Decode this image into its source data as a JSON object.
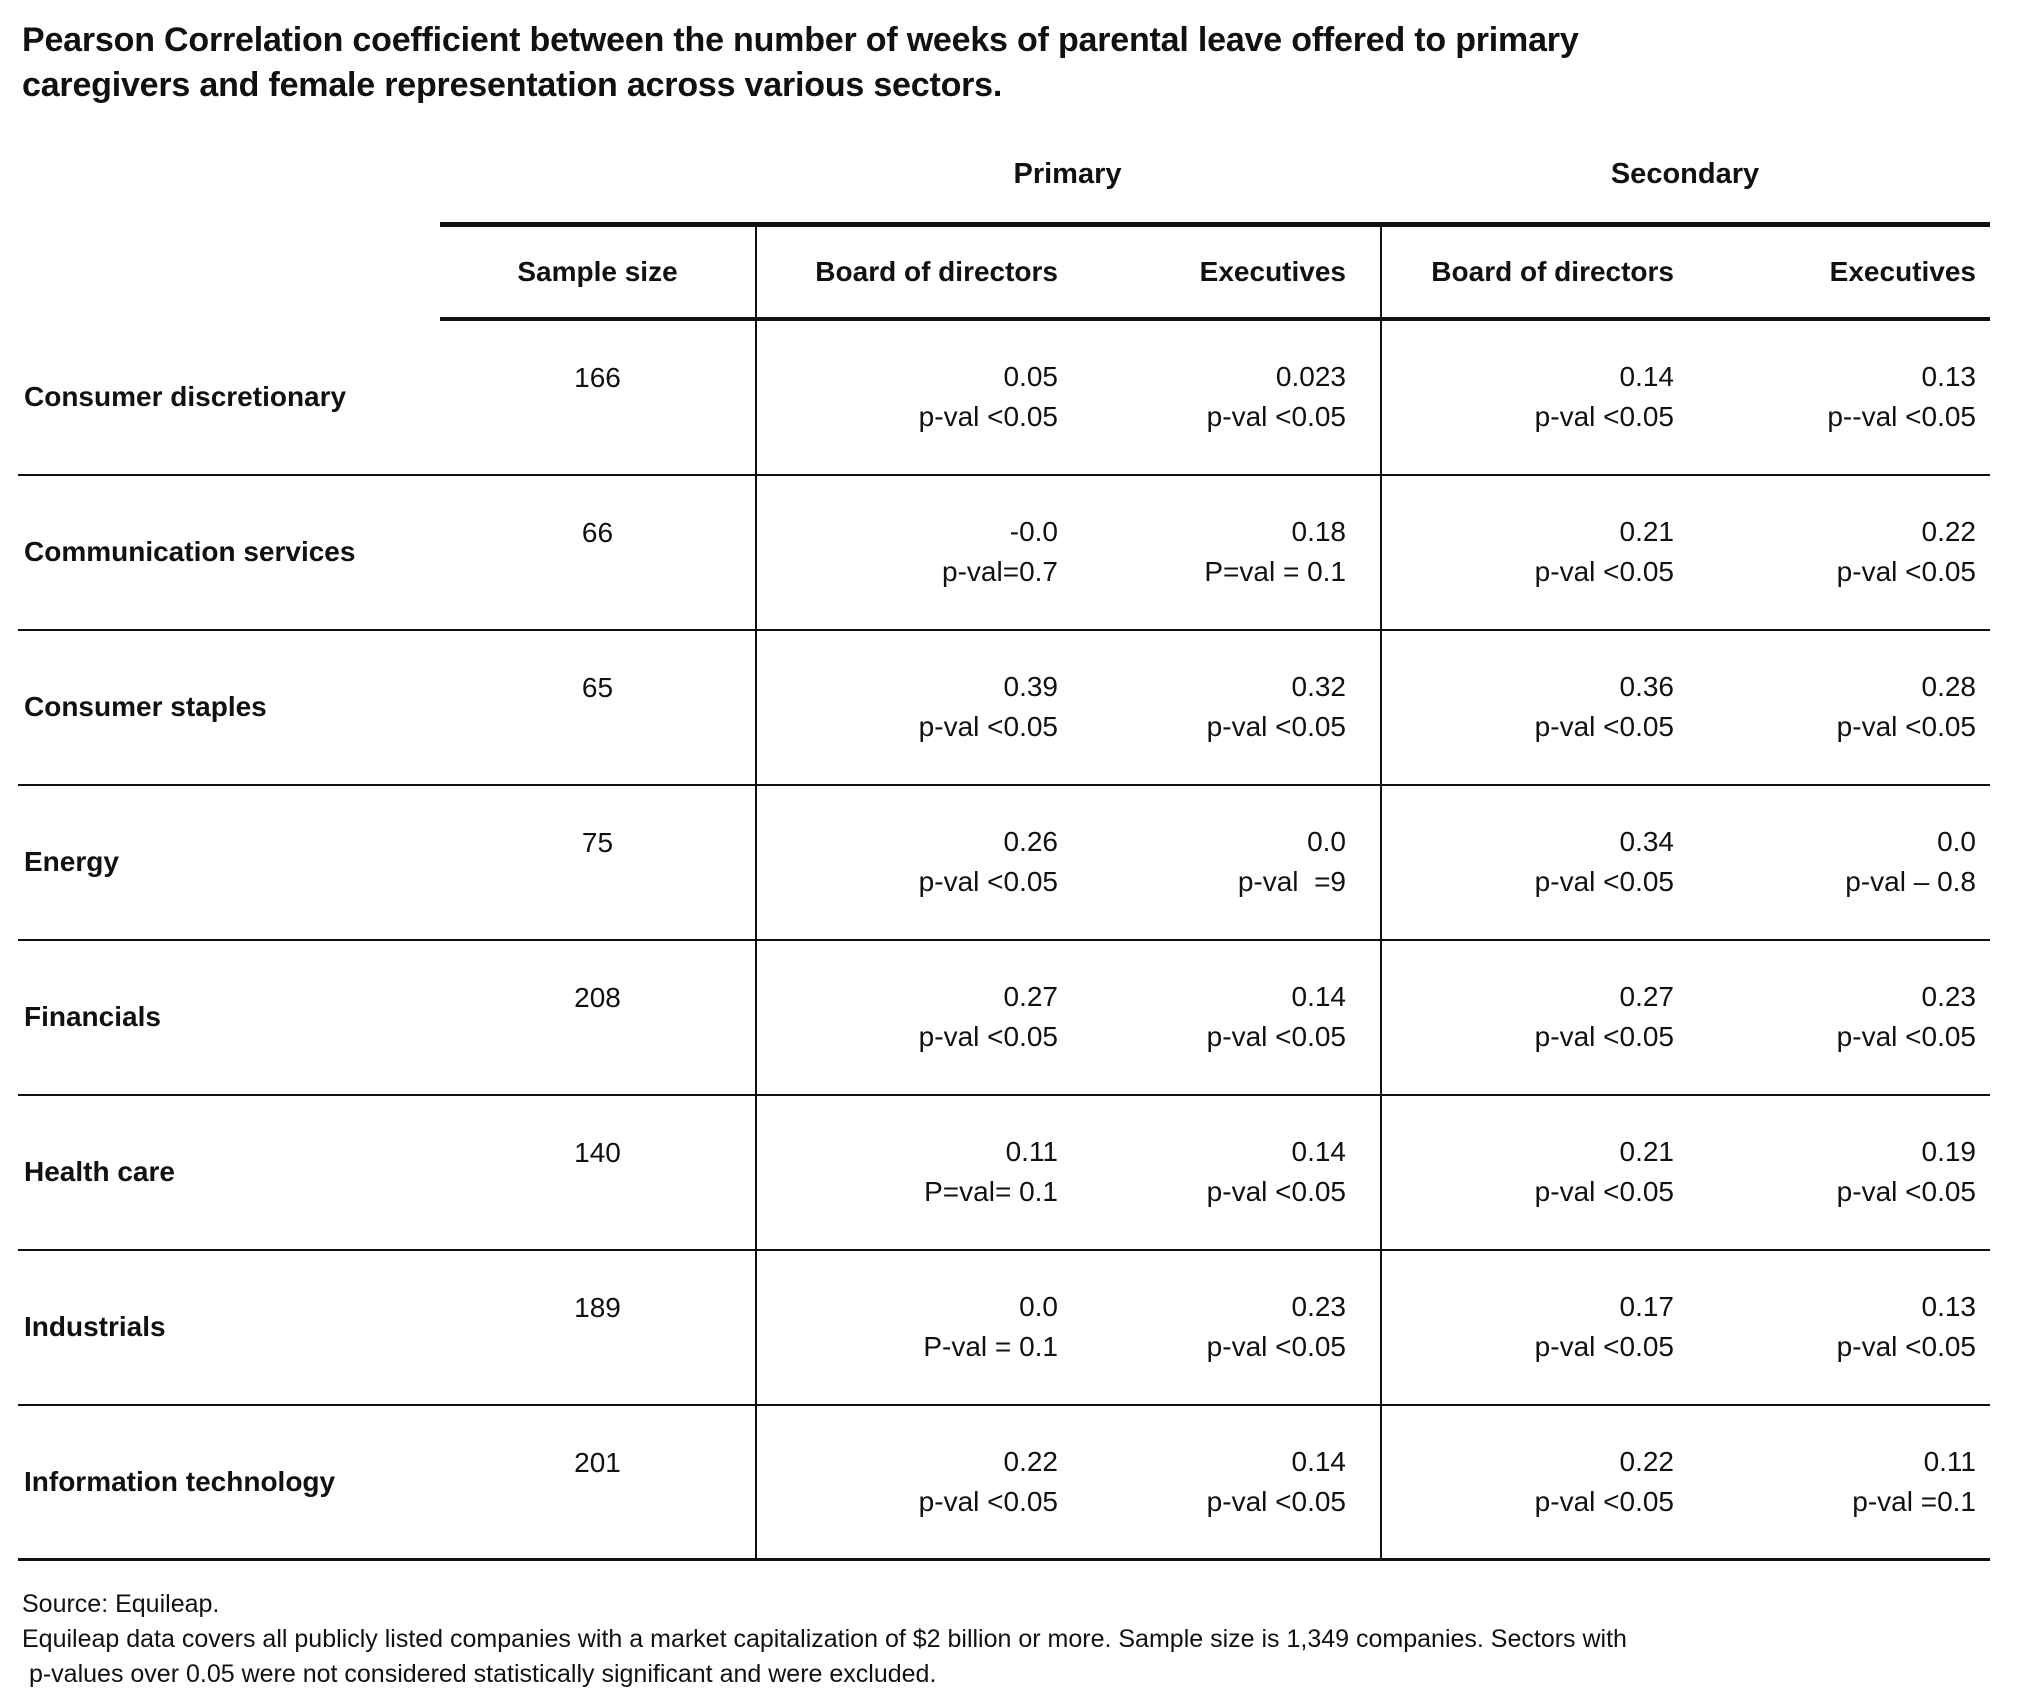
{
  "chart_data": {
    "type": "table",
    "title": "Pearson Correlation coefficient between the number of weeks of parental leave offered to primary caregivers and female representation across various sectors.",
    "group_headers": [
      "Primary",
      "Secondary"
    ],
    "columns": [
      "Sample size",
      "Board of directors",
      "Executives",
      "Board of directors",
      "Executives"
    ],
    "rows": [
      {
        "sector": "Consumer discretionary",
        "sample": "166",
        "cells": [
          {
            "coef": "0.05",
            "pval": "p-val <0.05"
          },
          {
            "coef": "0.023",
            "pval": "p-val <0.05"
          },
          {
            "coef": "0.14",
            "pval": "p-val <0.05"
          },
          {
            "coef": "0.13",
            "pval": "p--val <0.05"
          }
        ]
      },
      {
        "sector": "Communication services",
        "sample": "66",
        "cells": [
          {
            "coef": "-0.0",
            "pval": "p-val=0.7"
          },
          {
            "coef": "0.18",
            "pval": "P=val = 0.1"
          },
          {
            "coef": "0.21",
            "pval": "p-val <0.05"
          },
          {
            "coef": "0.22",
            "pval": "p-val <0.05"
          }
        ]
      },
      {
        "sector": "Consumer staples",
        "sample": "65",
        "cells": [
          {
            "coef": "0.39",
            "pval": "p-val <0.05"
          },
          {
            "coef": "0.32",
            "pval": "p-val <0.05"
          },
          {
            "coef": "0.36",
            "pval": "p-val <0.05"
          },
          {
            "coef": "0.28",
            "pval": "p-val <0.05"
          }
        ]
      },
      {
        "sector": "Energy",
        "sample": "75",
        "cells": [
          {
            "coef": "0.26",
            "pval": "p-val <0.05"
          },
          {
            "coef": "0.0",
            "pval": "p-val  =9"
          },
          {
            "coef": "0.34",
            "pval": "p-val <0.05"
          },
          {
            "coef": "0.0",
            "pval": "p-val – 0.8"
          }
        ]
      },
      {
        "sector": "Financials",
        "sample": "208",
        "cells": [
          {
            "coef": "0.27",
            "pval": "p-val <0.05"
          },
          {
            "coef": "0.14",
            "pval": "p-val <0.05"
          },
          {
            "coef": "0.27",
            "pval": "p-val <0.05"
          },
          {
            "coef": "0.23",
            "pval": "p-val <0.05"
          }
        ]
      },
      {
        "sector": "Health care",
        "sample": "140",
        "cells": [
          {
            "coef": "0.11",
            "pval": "P=val= 0.1"
          },
          {
            "coef": "0.14",
            "pval": "p-val <0.05"
          },
          {
            "coef": "0.21",
            "pval": "p-val <0.05"
          },
          {
            "coef": "0.19",
            "pval": "p-val <0.05"
          }
        ]
      },
      {
        "sector": "Industrials",
        "sample": "189",
        "cells": [
          {
            "coef": "0.0",
            "pval": "P-val = 0.1"
          },
          {
            "coef": "0.23",
            "pval": "p-val <0.05"
          },
          {
            "coef": "0.17",
            "pval": "p-val <0.05"
          },
          {
            "coef": "0.13",
            "pval": "p-val <0.05"
          }
        ]
      },
      {
        "sector": "Information technology",
        "sample": "201",
        "cells": [
          {
            "coef": "0.22",
            "pval": "p-val <0.05"
          },
          {
            "coef": "0.14",
            "pval": "p-val <0.05"
          },
          {
            "coef": "0.22",
            "pval": "p-val <0.05"
          },
          {
            "coef": "0.11",
            "pval": "p-val =0.1"
          }
        ]
      }
    ]
  },
  "footer": {
    "source": "Source: Equileap.",
    "note_line1": "Equileap data covers all publicly listed companies with a market capitalization of $2 billion or more. Sample size is 1,349 companies. Sectors with",
    "note_line2": " p-values over 0.05 were not considered statistically significant and were excluded."
  }
}
